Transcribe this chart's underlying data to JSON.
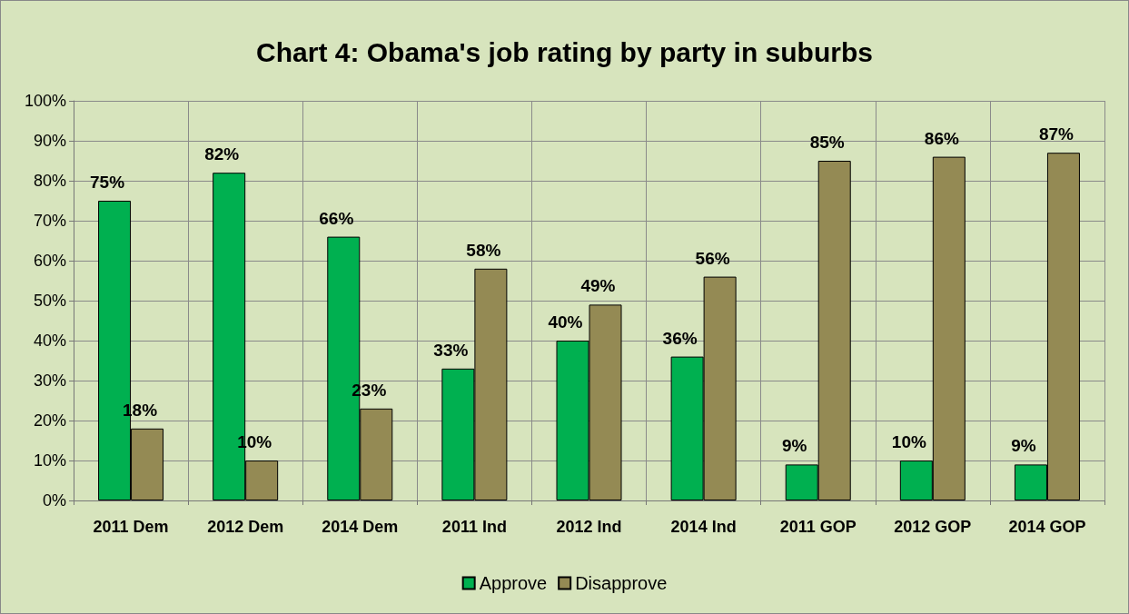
{
  "chart_data": {
    "type": "bar",
    "title": "Chart 4: Obama's job rating by party in suburbs",
    "categories": [
      "2011 Dem",
      "2012 Dem",
      "2014 Dem",
      "2011 Ind",
      "2012 Ind",
      "2014 Ind",
      "2011 GOP",
      "2012 GOP",
      "2014 GOP"
    ],
    "series": [
      {
        "name": "Approve",
        "color": "#00b050",
        "values": [
          75,
          82,
          66,
          33,
          40,
          36,
          9,
          10,
          9
        ],
        "value_labels": [
          "75%",
          "82%",
          "66%",
          "33%",
          "40%",
          "36%",
          "9%",
          "10%",
          "9%"
        ]
      },
      {
        "name": "Disapprove",
        "color": "#948a54",
        "values": [
          18,
          10,
          23,
          58,
          49,
          56,
          85,
          86,
          87
        ],
        "value_labels": [
          "18%",
          "10%",
          "23%",
          "58%",
          "49%",
          "56%",
          "85%",
          "86%",
          "87%"
        ]
      }
    ],
    "ylim": [
      0,
      100
    ],
    "yticks": [
      {
        "value": 0,
        "label": "0%"
      },
      {
        "value": 10,
        "label": "10%"
      },
      {
        "value": 20,
        "label": "20%"
      },
      {
        "value": 30,
        "label": "30%"
      },
      {
        "value": 40,
        "label": "40%"
      },
      {
        "value": 50,
        "label": "50%"
      },
      {
        "value": 60,
        "label": "60%"
      },
      {
        "value": 70,
        "label": "70%"
      },
      {
        "value": 80,
        "label": "80%"
      },
      {
        "value": 90,
        "label": "90%"
      },
      {
        "value": 100,
        "label": "100%"
      }
    ],
    "grid": true,
    "legend": "bottom"
  }
}
